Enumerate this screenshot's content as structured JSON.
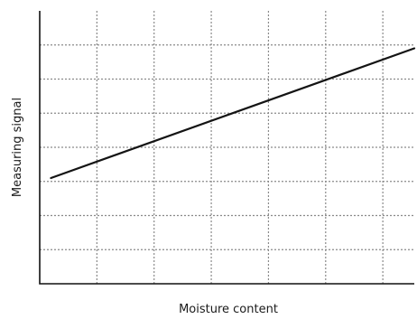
{
  "chart_data": {
    "type": "line",
    "title": "",
    "xlabel": "Moisture content",
    "ylabel": "Measuring signal",
    "xlim": [
      0,
      1
    ],
    "ylim": [
      0,
      8
    ],
    "grid": true,
    "grid_style": "dotted",
    "x_gridlines": 6,
    "y_gridlines": 8,
    "series": [
      {
        "x": [
          0.03,
          1.0
        ],
        "y": [
          3.1,
          6.9
        ]
      }
    ],
    "colors": {
      "line": "#141414",
      "grid": "#8a8a8a",
      "axis": "#111111"
    }
  }
}
